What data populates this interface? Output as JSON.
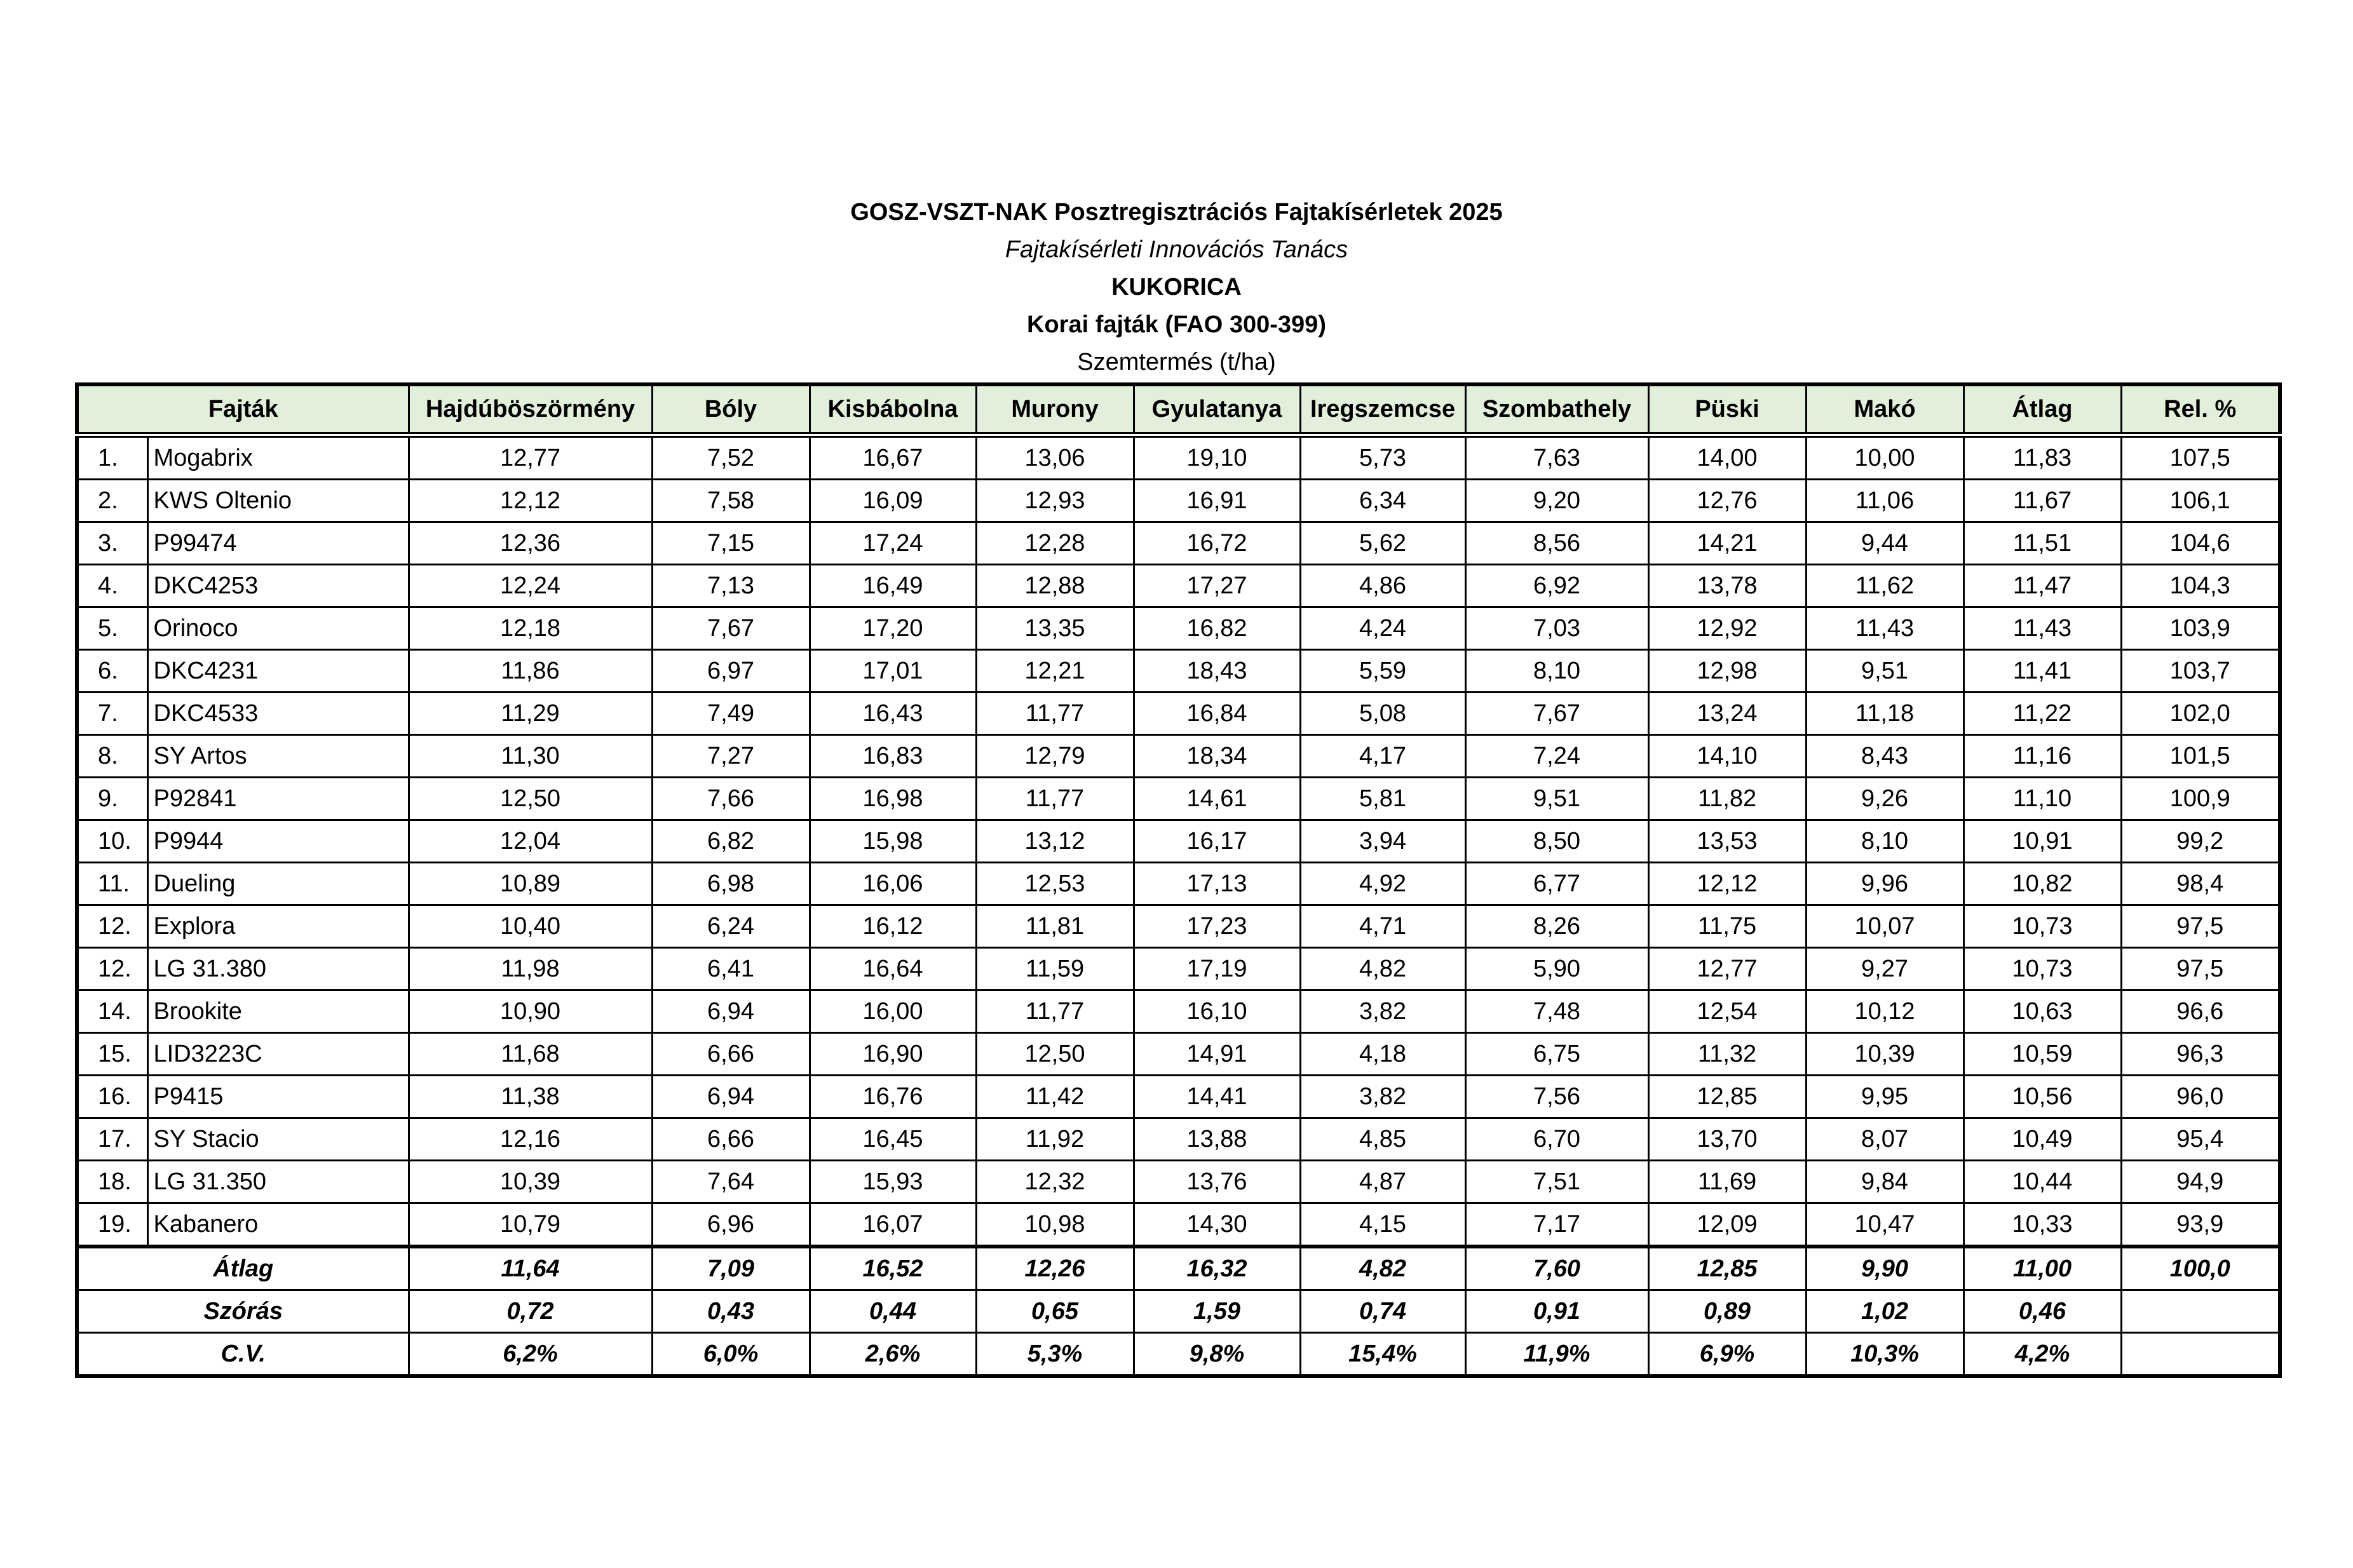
{
  "header": {
    "title": "GOSZ-VSZT-NAK Posztregisztrációs Fajtakísérletek 2025",
    "subtitle": "Fajtakísérleti Innovációs Tanács",
    "crop": "KUKORICA",
    "group": "Korai fajták (FAO 300-399)",
    "unit": "Szemtermés (t/ha)"
  },
  "table": {
    "columns": [
      "Fajták",
      "Hajdúböszörmény",
      "Bóly",
      "Kisbábolna",
      "Murony",
      "Gyulatanya",
      "Iregszemcse",
      "Szombathely",
      "Püski",
      "Makó",
      "Átlag",
      "Rel. %"
    ],
    "header_bg": "#e2efda",
    "rows": [
      {
        "rank": "1.",
        "name": "Mogabrix",
        "values": [
          "12,77",
          "7,52",
          "16,67",
          "13,06",
          "19,10",
          "5,73",
          "7,63",
          "14,00",
          "10,00",
          "11,83",
          "107,5"
        ]
      },
      {
        "rank": "2.",
        "name": "KWS Oltenio",
        "values": [
          "12,12",
          "7,58",
          "16,09",
          "12,93",
          "16,91",
          "6,34",
          "9,20",
          "12,76",
          "11,06",
          "11,67",
          "106,1"
        ]
      },
      {
        "rank": "3.",
        "name": "P99474",
        "values": [
          "12,36",
          "7,15",
          "17,24",
          "12,28",
          "16,72",
          "5,62",
          "8,56",
          "14,21",
          "9,44",
          "11,51",
          "104,6"
        ]
      },
      {
        "rank": "4.",
        "name": "DKC4253",
        "values": [
          "12,24",
          "7,13",
          "16,49",
          "12,88",
          "17,27",
          "4,86",
          "6,92",
          "13,78",
          "11,62",
          "11,47",
          "104,3"
        ]
      },
      {
        "rank": "5.",
        "name": "Orinoco",
        "values": [
          "12,18",
          "7,67",
          "17,20",
          "13,35",
          "16,82",
          "4,24",
          "7,03",
          "12,92",
          "11,43",
          "11,43",
          "103,9"
        ]
      },
      {
        "rank": "6.",
        "name": "DKC4231",
        "values": [
          "11,86",
          "6,97",
          "17,01",
          "12,21",
          "18,43",
          "5,59",
          "8,10",
          "12,98",
          "9,51",
          "11,41",
          "103,7"
        ]
      },
      {
        "rank": "7.",
        "name": "DKC4533",
        "values": [
          "11,29",
          "7,49",
          "16,43",
          "11,77",
          "16,84",
          "5,08",
          "7,67",
          "13,24",
          "11,18",
          "11,22",
          "102,0"
        ]
      },
      {
        "rank": "8.",
        "name": "SY Artos",
        "values": [
          "11,30",
          "7,27",
          "16,83",
          "12,79",
          "18,34",
          "4,17",
          "7,24",
          "14,10",
          "8,43",
          "11,16",
          "101,5"
        ]
      },
      {
        "rank": "9.",
        "name": "P92841",
        "values": [
          "12,50",
          "7,66",
          "16,98",
          "11,77",
          "14,61",
          "5,81",
          "9,51",
          "11,82",
          "9,26",
          "11,10",
          "100,9"
        ]
      },
      {
        "rank": "10.",
        "name": "P9944",
        "values": [
          "12,04",
          "6,82",
          "15,98",
          "13,12",
          "16,17",
          "3,94",
          "8,50",
          "13,53",
          "8,10",
          "10,91",
          "99,2"
        ]
      },
      {
        "rank": "11.",
        "name": "Dueling",
        "values": [
          "10,89",
          "6,98",
          "16,06",
          "12,53",
          "17,13",
          "4,92",
          "6,77",
          "12,12",
          "9,96",
          "10,82",
          "98,4"
        ]
      },
      {
        "rank": "12.",
        "name": "Explora",
        "values": [
          "10,40",
          "6,24",
          "16,12",
          "11,81",
          "17,23",
          "4,71",
          "8,26",
          "11,75",
          "10,07",
          "10,73",
          "97,5"
        ]
      },
      {
        "rank": "12.",
        "name": "LG 31.380",
        "values": [
          "11,98",
          "6,41",
          "16,64",
          "11,59",
          "17,19",
          "4,82",
          "5,90",
          "12,77",
          "9,27",
          "10,73",
          "97,5"
        ]
      },
      {
        "rank": "14.",
        "name": "Brookite",
        "values": [
          "10,90",
          "6,94",
          "16,00",
          "11,77",
          "16,10",
          "3,82",
          "7,48",
          "12,54",
          "10,12",
          "10,63",
          "96,6"
        ]
      },
      {
        "rank": "15.",
        "name": "LID3223C",
        "values": [
          "11,68",
          "6,66",
          "16,90",
          "12,50",
          "14,91",
          "4,18",
          "6,75",
          "11,32",
          "10,39",
          "10,59",
          "96,3"
        ]
      },
      {
        "rank": "16.",
        "name": "P9415",
        "values": [
          "11,38",
          "6,94",
          "16,76",
          "11,42",
          "14,41",
          "3,82",
          "7,56",
          "12,85",
          "9,95",
          "10,56",
          "96,0"
        ]
      },
      {
        "rank": "17.",
        "name": "SY Stacio",
        "values": [
          "12,16",
          "6,66",
          "16,45",
          "11,92",
          "13,88",
          "4,85",
          "6,70",
          "13,70",
          "8,07",
          "10,49",
          "95,4"
        ]
      },
      {
        "rank": "18.",
        "name": "LG 31.350",
        "values": [
          "10,39",
          "7,64",
          "15,93",
          "12,32",
          "13,76",
          "4,87",
          "7,51",
          "11,69",
          "9,84",
          "10,44",
          "94,9"
        ]
      },
      {
        "rank": "19.",
        "name": "Kabanero",
        "values": [
          "10,79",
          "6,96",
          "16,07",
          "10,98",
          "14,30",
          "4,15",
          "7,17",
          "12,09",
          "10,47",
          "10,33",
          "93,9"
        ]
      }
    ],
    "footer": [
      {
        "label": "Átlag",
        "values": [
          "11,64",
          "7,09",
          "16,52",
          "12,26",
          "16,32",
          "4,82",
          "7,60",
          "12,85",
          "9,90",
          "11,00",
          "100,0"
        ]
      },
      {
        "label": "Szórás",
        "values": [
          "0,72",
          "0,43",
          "0,44",
          "0,65",
          "1,59",
          "0,74",
          "0,91",
          "0,89",
          "1,02",
          "0,46",
          ""
        ]
      },
      {
        "label": "C.V.",
        "values": [
          "6,2%",
          "6,0%",
          "2,6%",
          "5,3%",
          "9,8%",
          "15,4%",
          "11,9%",
          "6,9%",
          "10,3%",
          "4,2%",
          ""
        ]
      }
    ]
  }
}
